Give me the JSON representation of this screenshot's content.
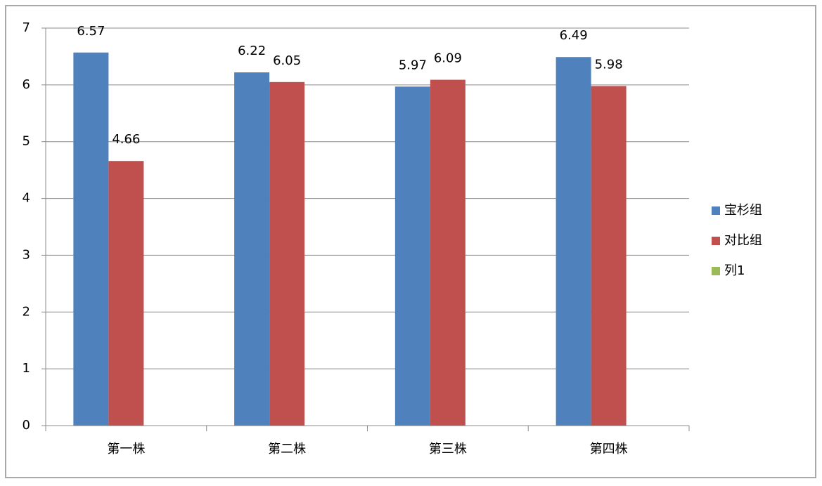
{
  "chart_data": {
    "type": "bar",
    "categories": [
      "第一株",
      "第二株",
      "第三株",
      "第四株"
    ],
    "series": [
      {
        "name": "宝杉组",
        "color": "#4f81bd",
        "values": [
          6.57,
          6.22,
          5.97,
          6.49
        ]
      },
      {
        "name": "对比组",
        "color": "#c0504d",
        "values": [
          4.66,
          6.05,
          6.09,
          5.98
        ]
      },
      {
        "name": "列1",
        "color": "#9bbb59",
        "values": [
          null,
          null,
          null,
          null
        ]
      }
    ],
    "ylim": [
      0,
      7
    ],
    "yticks": [
      0,
      1,
      2,
      3,
      4,
      5,
      6,
      7
    ],
    "grid": true,
    "legend": "right",
    "data_labels": true
  }
}
